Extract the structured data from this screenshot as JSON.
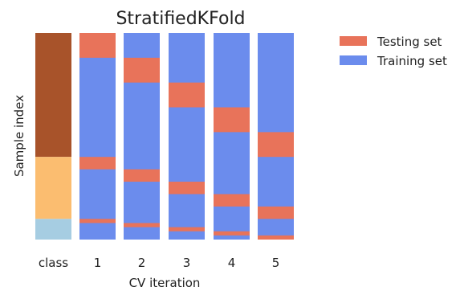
{
  "chart_data": {
    "type": "bar",
    "title": "StratifiedKFold",
    "xlabel": "CV iteration",
    "ylabel": "Sample index",
    "categories": [
      "class",
      "1",
      "2",
      "3",
      "4",
      "5"
    ],
    "ylim": [
      0,
      100
    ],
    "class_column": {
      "segments": [
        {
          "class": 0,
          "start": 0,
          "end": 60,
          "color": "#a8532a"
        },
        {
          "class": 1,
          "start": 60,
          "end": 90,
          "color": "#fbbd70"
        },
        {
          "class": 2,
          "start": 90,
          "end": 100,
          "color": "#a6cde2"
        }
      ]
    },
    "folds": [
      {
        "label": "1",
        "testing": [
          [
            0,
            12
          ],
          [
            60,
            66
          ],
          [
            90,
            92
          ]
        ]
      },
      {
        "label": "2",
        "testing": [
          [
            12,
            24
          ],
          [
            66,
            72
          ],
          [
            92,
            94
          ]
        ]
      },
      {
        "label": "3",
        "testing": [
          [
            24,
            36
          ],
          [
            72,
            78
          ],
          [
            94,
            96
          ]
        ]
      },
      {
        "label": "4",
        "testing": [
          [
            36,
            48
          ],
          [
            78,
            84
          ],
          [
            96,
            98
          ]
        ]
      },
      {
        "label": "5",
        "testing": [
          [
            48,
            60
          ],
          [
            84,
            90
          ],
          [
            98,
            100
          ]
        ]
      }
    ],
    "legend": {
      "position": "right",
      "entries": [
        {
          "name": "Testing set",
          "color": "#e8735a"
        },
        {
          "name": "Training set",
          "color": "#6b8ced"
        }
      ]
    },
    "colors": {
      "testing": "#e8735a",
      "training": "#6b8ced",
      "text": "#222222"
    }
  }
}
